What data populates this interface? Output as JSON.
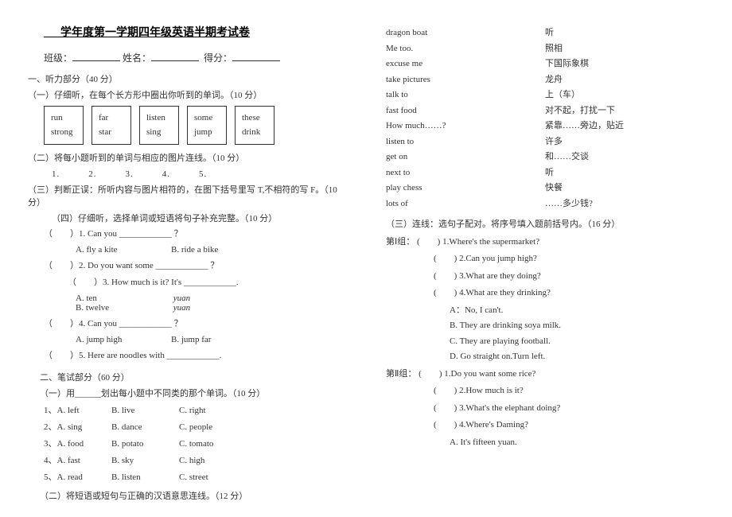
{
  "title": "___学年度第一学期四年级英语半期考试卷",
  "header": {
    "class": "班级：",
    "name": "姓名：",
    "score": "得分："
  },
  "listening": {
    "heading": "一、听力部分（40 分）",
    "p1": "（一）仔细听，在每个长方形中圈出你听到的单词。（10 分）",
    "boxes": [
      [
        "run",
        "strong"
      ],
      [
        "far",
        "star"
      ],
      [
        "listen",
        "sing"
      ],
      [
        "some",
        "jump"
      ],
      [
        "these",
        "drink"
      ]
    ],
    "p2": "（二）将每小题听到的单词与相应的图片连线。（10 分）",
    "nums": "1.　　　2.　　　3.　　　4.　　　5.",
    "p3": "（三）判断正误：所听内容与图片相符的，在图下括号里写 T,不相符的写 F。（10 分）",
    "p4": "（四）仔细听，选择单词或短语将句子补充完整。（10 分）",
    "q1": {
      "stem": "（　　）1. Can you ____________ ？",
      "a": "A. fly a kite",
      "b": "B. ride a bike"
    },
    "q2": {
      "stem": "（　　）2. Do you want some ____________ ？"
    },
    "q3": {
      "stem": "（　　）3. How much is it? It's ____________.",
      "a": "A. ten",
      "au": "yuan",
      "b": "B. twelve",
      "bu": "yuan"
    },
    "q4": {
      "stem": "（　　）4. Can you ____________ ？",
      "a": "A. jump high",
      "b": "B. jump far"
    },
    "q5": {
      "stem": "（　　）5. Here are noodles with ____________."
    }
  },
  "written": {
    "heading": "二、笔试部分（60 分）",
    "odd_h": "（一）用______划出每小题中不同类的那个单词。（10 分）",
    "odd": [
      [
        "1、A. left",
        "B. live",
        "C. right"
      ],
      [
        "2、A. sing",
        "B. dance",
        "C. people"
      ],
      [
        "3、A. food",
        "B. potato",
        "C. tomato"
      ],
      [
        "4、A. fast",
        "B. sky",
        "C. high"
      ],
      [
        "5、A. read",
        "B. listen",
        "C. street"
      ]
    ],
    "match_h": "（二）将短语或短句与正确的汉语意思连线。（12 分）"
  },
  "matches": [
    [
      "dragon boat",
      "听"
    ],
    [
      "Me too.",
      "照相"
    ],
    [
      "excuse me",
      "下国际象棋"
    ],
    [
      "take pictures",
      "龙舟"
    ],
    [
      "talk to",
      "上（车）"
    ],
    [
      "fast food",
      "对不起，打扰一下"
    ],
    [
      "How much……?",
      "紧靠……旁边，贴近"
    ],
    [
      "listen to",
      "许多"
    ],
    [
      "get on",
      "和……交谈"
    ],
    [
      "next to",
      "听"
    ],
    [
      "play chess",
      "快餐"
    ],
    [
      "lots of",
      "……多少钱?"
    ]
  ],
  "section3": {
    "heading": "（三）连线：选句子配对。将序号填入题前括号内。（16 分）",
    "g1_label": "第Ⅰ组：",
    "g1q": [
      "(　　) 1.Where's the supermarket?",
      "(　　) 2.Can you jump high?",
      "(　　) 3.What are they doing?",
      "(　　) 4.What are they drinking?"
    ],
    "g1a": [
      "A：No, I can't.",
      "B. They are drinking soya milk.",
      "C. They are playing football.",
      "D. Go straight on.Turn left."
    ],
    "g2_label": "第Ⅱ组：",
    "g2q": [
      "(　　) 1.Do you want some rice?",
      "(　　) 2.How much is it?",
      "(　　) 3.What's the elephant doing?",
      "(　　) 4.Where's Daming?"
    ],
    "g2a": [
      "A. It's fifteen yuan."
    ]
  }
}
